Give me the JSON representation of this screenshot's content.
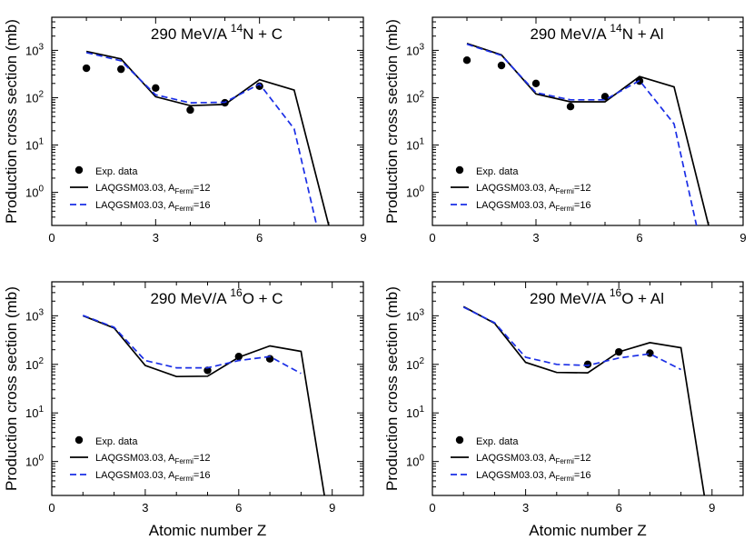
{
  "figure": {
    "shared_xlabel": "Atomic number Z",
    "ylabel": "Production cross section (mb)"
  },
  "chart_data": [
    {
      "type": "line",
      "title_parts": {
        "prefix": "290 MeV/A ",
        "sup": "14",
        "suffix": "N + C"
      },
      "xlabel": "",
      "ylabel": "Production cross section (mb)",
      "xlim": [
        0,
        9
      ],
      "xticks": [
        0,
        3,
        6,
        9
      ],
      "ylim": [
        0.2,
        5000
      ],
      "yscale": "log",
      "ytick_labels": [
        "10^0",
        "10^1",
        "10^2",
        "10^3"
      ],
      "legend": {
        "placement": "bottom-left",
        "exp": "Exp. data",
        "l12_base": "LAQGSM03.03, A",
        "l12_sub": "Fermi",
        "l12_eq": "=12",
        "l16_base": "LAQGSM03.03, A",
        "l16_sub": "Fermi",
        "l16_eq": "=16"
      },
      "series": [
        {
          "name": "Exp. data",
          "style": "markers",
          "x": [
            1,
            2,
            3,
            4,
            5,
            6
          ],
          "y": [
            420,
            400,
            160,
            55,
            78,
            175
          ]
        },
        {
          "name": "LAQGSM03.03, AFermi=12",
          "style": "solid",
          "color": "#000000",
          "x": [
            1,
            2,
            3,
            4,
            5,
            6,
            7,
            8
          ],
          "y": [
            950,
            660,
            105,
            68,
            72,
            240,
            145,
            0.2
          ]
        },
        {
          "name": "LAQGSM03.03, AFermi=16",
          "style": "dashed",
          "color": "#1a2ee6",
          "x": [
            1,
            2,
            3,
            4,
            5,
            6,
            7,
            7.65
          ],
          "y": [
            900,
            600,
            115,
            78,
            80,
            195,
            22,
            0.2
          ]
        }
      ]
    },
    {
      "type": "line",
      "title_parts": {
        "prefix": "290 MeV/A ",
        "sup": "14",
        "suffix": "N + Al"
      },
      "xlabel": "",
      "ylabel": "Production cross section (mb)",
      "xlim": [
        0,
        9
      ],
      "xticks": [
        0,
        3,
        6,
        9
      ],
      "ylim": [
        0.2,
        5000
      ],
      "yscale": "log",
      "ytick_labels": [
        "10^0",
        "10^1",
        "10^2",
        "10^3"
      ],
      "legend": {
        "placement": "bottom-left",
        "exp": "Exp. data",
        "l12_base": "LAQGSM03.03, A",
        "l12_sub": "Fermi",
        "l12_eq": "=12",
        "l16_base": "LAQGSM03.03, A",
        "l16_sub": "Fermi",
        "l16_eq": "=16"
      },
      "series": [
        {
          "name": "Exp. data",
          "style": "markers",
          "x": [
            1,
            2,
            3,
            4,
            5,
            6
          ],
          "y": [
            620,
            480,
            200,
            65,
            105,
            225
          ]
        },
        {
          "name": "LAQGSM03.03, AFermi=12",
          "style": "solid",
          "color": "#000000",
          "x": [
            1,
            2,
            3,
            4,
            5,
            6,
            7,
            8
          ],
          "y": [
            1400,
            800,
            120,
            82,
            82,
            280,
            170,
            0.2
          ]
        },
        {
          "name": "LAQGSM03.03, AFermi=16",
          "style": "dashed",
          "color": "#1a2ee6",
          "x": [
            1,
            2,
            3,
            4,
            5,
            6,
            7,
            7.65
          ],
          "y": [
            1350,
            780,
            128,
            90,
            90,
            230,
            28,
            0.2
          ]
        }
      ]
    },
    {
      "type": "line",
      "title_parts": {
        "prefix": "290 MeV/A ",
        "sup": "16",
        "suffix": "O + C"
      },
      "xlabel": "Atomic number Z",
      "ylabel": "Production cross section (mb)",
      "xlim": [
        0,
        10
      ],
      "xticks": [
        0,
        3,
        6,
        9
      ],
      "ylim": [
        0.2,
        5000
      ],
      "yscale": "log",
      "ytick_labels": [
        "10^0",
        "10^1",
        "10^2",
        "10^3"
      ],
      "legend": {
        "placement": "bottom-left",
        "exp": "Exp. data",
        "l12_base": "LAQGSM03.03, A",
        "l12_sub": "Fermi",
        "l12_eq": "=12",
        "l16_base": "LAQGSM03.03, A",
        "l16_sub": "Fermi",
        "l16_eq": "=16"
      },
      "series": [
        {
          "name": "Exp. data",
          "style": "markers",
          "x": [
            5,
            6,
            7
          ],
          "y": [
            75,
            145,
            130
          ]
        },
        {
          "name": "LAQGSM03.03, AFermi=12",
          "style": "solid",
          "color": "#000000",
          "x": [
            1,
            2,
            3,
            4,
            5,
            6,
            7,
            8,
            8.75
          ],
          "y": [
            1000,
            560,
            95,
            56,
            57,
            140,
            240,
            185,
            0.2
          ]
        },
        {
          "name": "LAQGSM03.03, AFermi=16",
          "style": "dashed",
          "color": "#1a2ee6",
          "x": [
            1,
            2,
            3,
            4,
            5,
            6,
            7,
            8
          ],
          "y": [
            1020,
            580,
            120,
            85,
            85,
            120,
            145,
            65
          ]
        }
      ]
    },
    {
      "type": "line",
      "title_parts": {
        "prefix": "290 MeV/A ",
        "sup": "16",
        "suffix": "O + Al"
      },
      "xlabel": "Atomic number Z",
      "ylabel": "Production cross section (mb)",
      "xlim": [
        0,
        10
      ],
      "xticks": [
        0,
        3,
        6,
        9
      ],
      "ylim": [
        0.2,
        5000
      ],
      "yscale": "log",
      "ytick_labels": [
        "10^0",
        "10^1",
        "10^2",
        "10^3"
      ],
      "legend": {
        "placement": "bottom-left",
        "exp": "Exp. data",
        "l12_base": "LAQGSM03.03, A",
        "l12_sub": "Fermi",
        "l12_eq": "=12",
        "l16_base": "LAQGSM03.03, A",
        "l16_sub": "Fermi",
        "l16_eq": "=16"
      },
      "series": [
        {
          "name": "Exp. data",
          "style": "markers",
          "x": [
            5,
            6,
            7
          ],
          "y": [
            100,
            180,
            170
          ]
        },
        {
          "name": "LAQGSM03.03, AFermi=12",
          "style": "solid",
          "color": "#000000",
          "x": [
            1,
            2,
            3,
            4,
            5,
            6,
            7,
            8,
            8.75
          ],
          "y": [
            1550,
            700,
            110,
            68,
            67,
            180,
            280,
            220,
            0.2
          ]
        },
        {
          "name": "LAQGSM03.03, AFermi=16",
          "style": "dashed",
          "color": "#1a2ee6",
          "x": [
            1,
            2,
            3,
            4,
            5,
            6,
            7,
            8
          ],
          "y": [
            1500,
            720,
            140,
            100,
            95,
            135,
            165,
            78
          ]
        }
      ]
    }
  ]
}
